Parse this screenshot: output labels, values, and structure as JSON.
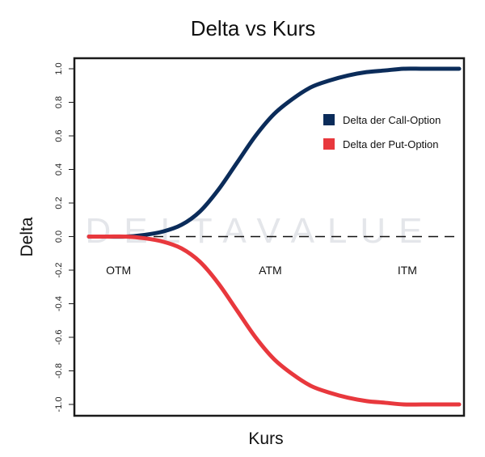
{
  "chart_data": {
    "type": "line",
    "title": "Delta vs Kurs",
    "xlabel": "Kurs",
    "ylabel": "Delta",
    "ylim": [
      -1.05,
      1.05
    ],
    "y_ticks": [
      1.0,
      0.8,
      0.6,
      0.4,
      0.2,
      0.0,
      -0.2,
      -0.4,
      -0.6,
      -0.8,
      -1.0
    ],
    "y_tick_labels": [
      "1.0",
      "0.8",
      "0.6",
      "0.4",
      "0.2",
      "0.0",
      "-0.2",
      "-0.4",
      "-0.6",
      "-0.8",
      "-1.0"
    ],
    "x_ticks_shown": false,
    "xlim": [
      0,
      1
    ],
    "series": [
      {
        "name": "Delta der Call-Option",
        "color": "#0b2c5a",
        "x": [
          0,
          0.05,
          0.1,
          0.15,
          0.2,
          0.25,
          0.3,
          0.35,
          0.4,
          0.45,
          0.5,
          0.55,
          0.6,
          0.65,
          0.7,
          0.75,
          0.8,
          0.85,
          0.9,
          0.95,
          1.0
        ],
        "values": [
          0.0,
          0.0,
          0.0,
          0.01,
          0.03,
          0.07,
          0.15,
          0.28,
          0.44,
          0.6,
          0.73,
          0.82,
          0.89,
          0.93,
          0.96,
          0.98,
          0.99,
          1.0,
          1.0,
          1.0,
          1.0
        ]
      },
      {
        "name": "Delta der Put-Option",
        "color": "#e8383d",
        "x": [
          0,
          0.05,
          0.1,
          0.15,
          0.2,
          0.25,
          0.3,
          0.35,
          0.4,
          0.45,
          0.5,
          0.55,
          0.6,
          0.65,
          0.7,
          0.75,
          0.8,
          0.85,
          0.9,
          0.95,
          1.0
        ],
        "values": [
          0.0,
          0.0,
          0.0,
          -0.01,
          -0.03,
          -0.07,
          -0.15,
          -0.28,
          -0.44,
          -0.6,
          -0.73,
          -0.82,
          -0.89,
          -0.93,
          -0.96,
          -0.98,
          -0.99,
          -1.0,
          -1.0,
          -1.0,
          -1.0
        ]
      }
    ],
    "reference_line": {
      "y": 0.0,
      "style": "dashed",
      "color": "#111111"
    },
    "annotations": [
      {
        "text": "OTM",
        "x": 0.08,
        "y": -0.2
      },
      {
        "text": "ATM",
        "x": 0.49,
        "y": -0.2
      },
      {
        "text": "ITM",
        "x": 0.86,
        "y": -0.2
      }
    ],
    "legend": {
      "position": "top-right"
    },
    "grid": false,
    "watermark": "DELTAVALUE"
  }
}
